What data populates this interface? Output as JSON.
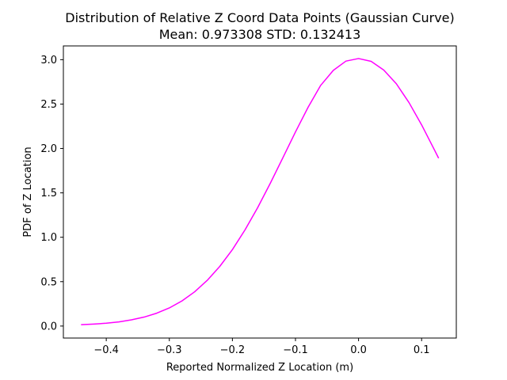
{
  "chart_data": {
    "type": "line",
    "title": "Distribution of Relative Z Coord Data Points (Gaussian Curve)",
    "subtitle": "Mean: 0.973308 STD: 0.132413",
    "xlabel": "Reported Normalized Z Location (m)",
    "ylabel": "PDF of Z Location",
    "xlim": [
      -0.468,
      0.155
    ],
    "ylim": [
      -0.135,
      3.155
    ],
    "xticks": [
      -0.4,
      -0.3,
      -0.2,
      -0.1,
      0.0,
      0.1
    ],
    "xtick_labels": [
      "−0.4",
      "−0.3",
      "−0.2",
      "−0.1",
      "0.0",
      "0.1"
    ],
    "yticks": [
      0.0,
      0.5,
      1.0,
      1.5,
      2.0,
      2.5,
      3.0
    ],
    "ytick_labels": [
      "0.0",
      "0.5",
      "1.0",
      "1.5",
      "2.0",
      "2.5",
      "3.0"
    ],
    "grid": false,
    "legend": "none",
    "series": [
      {
        "color": "#ff00ff",
        "x": [
          -0.44,
          -0.42,
          -0.4,
          -0.38,
          -0.36,
          -0.34,
          -0.32,
          -0.3,
          -0.28,
          -0.26,
          -0.24,
          -0.22,
          -0.2,
          -0.18,
          -0.16,
          -0.14,
          -0.12,
          -0.1,
          -0.08,
          -0.06,
          -0.04,
          -0.02,
          0.0,
          0.02,
          0.04,
          0.06,
          0.08,
          0.1,
          0.12,
          0.127
        ],
        "y": [
          0.015,
          0.022,
          0.032,
          0.047,
          0.07,
          0.101,
          0.145,
          0.204,
          0.283,
          0.385,
          0.514,
          0.672,
          0.861,
          1.083,
          1.333,
          1.607,
          1.895,
          2.186,
          2.464,
          2.711,
          2.88,
          2.984,
          3.013,
          2.981,
          2.883,
          2.728,
          2.517,
          2.266,
          1.989,
          1.89
        ]
      }
    ]
  }
}
